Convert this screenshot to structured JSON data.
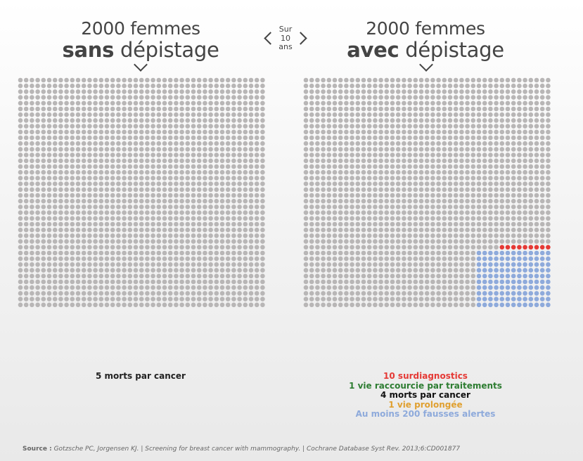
{
  "left_panel": {
    "title_line1": "2000 femmes",
    "title_bold": "sans",
    "title_rest": " dépistage",
    "caption": "5 morts par cancer"
  },
  "right_panel": {
    "title_line1": "2000 femmes",
    "title_bold": "avec",
    "title_rest": " dépistage"
  },
  "period": {
    "line1": "Sur",
    "line2": "10",
    "line3": "ans"
  },
  "legend": [
    {
      "label": "10 surdiagnostics",
      "color": "#e53935"
    },
    {
      "label": "1 vie raccourcie par traitements",
      "color": "#2e7d32"
    },
    {
      "label": "4 morts par cancer",
      "color": "#111111"
    },
    {
      "label": "1 vie prolongée",
      "color": "#e0a030"
    },
    {
      "label": "Au moins 200 fausses alertes",
      "color": "#8eaadb"
    }
  ],
  "source": {
    "prefix": "Source :",
    "text": "Gotzsche PC, Jorgensen KJ.  |  Screening for breast cancer with mammography.  |  Cochrane Database Syst Rev. 2013;6:CD001877"
  },
  "chart_data": {
    "type": "waffle",
    "grid": {
      "columns": 50,
      "rows": 40
    },
    "default_color": "#b8b6b6",
    "panels": [
      {
        "name": "sans dépistage",
        "total": 2000,
        "groups": [
          {
            "label": "5 morts par cancer",
            "count": 5,
            "color": "#111111"
          }
        ]
      },
      {
        "name": "avec dépistage",
        "total": 2000,
        "groups": [
          {
            "label": "Au moins 200 fausses alertes",
            "count": 200,
            "color": "#8eaadb"
          },
          {
            "label": "10 surdiagnostics",
            "count": 10,
            "color": "#e53935"
          },
          {
            "label": "1 vie raccourcie par traitements",
            "count": 1,
            "color": "#2e7d32"
          },
          {
            "label": "4 morts par cancer",
            "count": 4,
            "color": "#111111"
          },
          {
            "label": "1 vie prolongée",
            "count": 1,
            "color": "#e0a030"
          }
        ]
      }
    ]
  }
}
